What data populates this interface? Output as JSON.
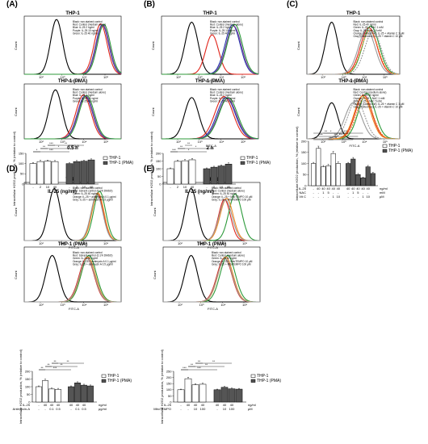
{
  "chart_data": [
    {
      "panel": "(A)",
      "type": "line",
      "title": "THP-1",
      "xlabel": "FITC-A",
      "ylabel": "Count",
      "legend": [
        "Black: non-stained control",
        "Red: Control (medium alone)",
        "Blue: IL-25 2 ng/ml",
        "Purple: IL-25 10 ng/ml",
        "Green: IL-25 40 ng/ml"
      ],
      "series": [
        {
          "color": "#000000",
          "peak": 4.5,
          "width": 0.55,
          "height": 1.0
        },
        {
          "color": "#e0251b",
          "peak": 8.6,
          "width": 0.6,
          "height": 0.92
        },
        {
          "color": "#2a3fae",
          "peak": 8.75,
          "width": 0.6,
          "height": 0.9
        },
        {
          "color": "#7a3a9a",
          "peak": 8.8,
          "width": 0.6,
          "height": 0.9
        },
        {
          "color": "#2c9a3a",
          "peak": 8.9,
          "width": 0.6,
          "height": 0.91
        }
      ]
    },
    {
      "panel": "(A)",
      "type": "line",
      "title": "THP-1 (PMA)",
      "xlabel": "FITC-A",
      "ylabel": "Count",
      "legend": [
        "Black: non-stained control",
        "Red: Control (medium alone)",
        "Blue: IL-25 2 ng/ml",
        "Purple: IL-25 10 ng/ml",
        "Green: IL-25 40 ng/ml"
      ],
      "series": [
        {
          "color": "#000000",
          "peak": 4.4,
          "width": 0.6,
          "height": 0.95
        },
        {
          "color": "#e0251b",
          "peak": 7.0,
          "width": 0.7,
          "height": 0.85
        },
        {
          "color": "#2a3fae",
          "peak": 7.15,
          "width": 0.7,
          "height": 0.83
        },
        {
          "color": "#7a3a9a",
          "peak": 7.2,
          "width": 0.7,
          "height": 0.83
        },
        {
          "color": "#2c9a3a",
          "peak": 7.3,
          "width": 0.7,
          "height": 0.84
        }
      ]
    },
    {
      "panel": "(B)",
      "type": "line",
      "title": "THP-1",
      "xlabel": "FITC-A",
      "ylabel": "Count",
      "legend": [
        "Black: non-stained control",
        "Red: Control (medium alone)",
        "Blue: IL-25 2 ng/ml",
        "Purple: IL-25 10 ng/ml",
        "Green: IL-25 40 ng/ml"
      ],
      "series": [
        {
          "color": "#000000",
          "peak": 4.3,
          "width": 0.6,
          "height": 0.95
        },
        {
          "color": "#e0251b",
          "peak": 6.2,
          "width": 0.6,
          "height": 0.72
        },
        {
          "color": "#2a3fae",
          "peak": 8.1,
          "width": 0.7,
          "height": 0.9
        },
        {
          "color": "#7a3a9a",
          "peak": 8.2,
          "width": 0.7,
          "height": 0.88
        },
        {
          "color": "#2c9a3a",
          "peak": 8.3,
          "width": 0.7,
          "height": 0.91
        }
      ]
    },
    {
      "panel": "(B)",
      "type": "line",
      "title": "THP-1 (PMA)",
      "xlabel": "FITC-A",
      "ylabel": "Count",
      "legend": [
        "Black: non-stained control",
        "Red: Control (medium alone)",
        "Blue: IL-25 2 ng/ml",
        "Purple: IL-25 10 ng/ml",
        "Green: IL-25 40 ng/ml"
      ],
      "series": [
        {
          "color": "#000000",
          "peak": 4.3,
          "width": 0.65,
          "height": 0.8
        },
        {
          "color": "#e0251b",
          "peak": 7.3,
          "width": 0.85,
          "height": 0.82
        },
        {
          "color": "#2a3fae",
          "peak": 7.5,
          "width": 0.85,
          "height": 0.8
        },
        {
          "color": "#7a3a9a",
          "peak": 7.6,
          "width": 0.85,
          "height": 0.78
        },
        {
          "color": "#2c9a3a",
          "peak": 7.7,
          "width": 0.85,
          "height": 0.8
        }
      ]
    },
    {
      "panel": "(C)",
      "type": "line",
      "title": "THP-1",
      "xlabel": "FITC-A",
      "ylabel": "Count",
      "legend": [
        "Black: non-stained control",
        "Red: IL-25 40 ng/ml",
        "Green: IL-25 + NAC 1 mM",
        "Gray: IL-25 + NAC 5 mM",
        "Orange (Dotted line): IL-25 + vitamin C 1 μM",
        "Gray (Dotted line): IL-25 + vitamin C 10 μM"
      ],
      "series": [
        {
          "color": "#000000",
          "peak": 3.9,
          "width": 0.6,
          "height": 0.95
        },
        {
          "color": "#e0251b",
          "peak": 7.5,
          "width": 0.8,
          "height": 0.85
        },
        {
          "color": "#2c9a3a",
          "peak": 7.7,
          "width": 0.8,
          "height": 0.88
        },
        {
          "color": "#9a9a9a",
          "peak": 7.3,
          "width": 0.8,
          "height": 0.82
        },
        {
          "color": "#f08a24",
          "peak": 7.6,
          "width": 0.8,
          "height": 0.8,
          "dashed": true
        },
        {
          "color": "#9a9a9a",
          "peak": 7.9,
          "width": 0.8,
          "height": 0.78,
          "dashed": true
        }
      ]
    },
    {
      "panel": "(C)",
      "type": "line",
      "title": "THP-1 (PMA)",
      "xlabel": "FITC-A",
      "ylabel": "Count",
      "legend": [
        "Black: non-stained control",
        "Red: Control (medium alone)",
        "Green: IL-25 40 ng/ml",
        "Orange: IL-25 + NAC 1 mM",
        "Gray: IL-25 + NAC 5 mM",
        "Orange (Dotted line): IL-25 + vitamin C 1 μM",
        "Gray (Dotted line): IL-25 + vitamin C 10 μM"
      ],
      "series": [
        {
          "color": "#000000",
          "peak": 3.9,
          "width": 0.6,
          "height": 0.7
        },
        {
          "color": "#e0251b",
          "peak": 7.0,
          "width": 0.8,
          "height": 0.85
        },
        {
          "color": "#2c9a3a",
          "peak": 7.3,
          "width": 0.8,
          "height": 0.88
        },
        {
          "color": "#f08a24",
          "peak": 6.9,
          "width": 0.8,
          "height": 0.83
        },
        {
          "color": "#9a9a9a",
          "peak": 6.0,
          "width": 0.8,
          "height": 0.7
        },
        {
          "color": "#f08a24",
          "peak": 7.1,
          "width": 0.8,
          "height": 0.8,
          "dashed": true
        },
        {
          "color": "#9a9a9a",
          "peak": 6.3,
          "width": 0.8,
          "height": 0.75,
          "dashed": true
        }
      ]
    },
    {
      "panel": "(D)",
      "type": "line",
      "title": "THP-1",
      "xlabel": "FITC-A",
      "ylabel": "Count",
      "legend": [
        "Black: non-stained control",
        "Red: Solvent control (0.1% DMSO)",
        "Green: IL-25 40 ng/ml",
        "Orange: IL-25 + antimycin A 0.1 μg/ml",
        "Gray: IL-25 + antimycin A 0.5 μg/ml"
      ],
      "series": [
        {
          "color": "#000000",
          "peak": 4.3,
          "width": 0.55,
          "height": 0.95
        },
        {
          "color": "#e0251b",
          "peak": 8.3,
          "width": 0.55,
          "height": 0.85
        },
        {
          "color": "#2c9a3a",
          "peak": 8.5,
          "width": 0.55,
          "height": 0.9
        },
        {
          "color": "#f08a24",
          "peak": 8.35,
          "width": 0.55,
          "height": 0.87
        },
        {
          "color": "#9a9a9a",
          "peak": 8.25,
          "width": 0.55,
          "height": 0.84
        }
      ]
    },
    {
      "panel": "(D)",
      "type": "line",
      "title": "THP-1 (PMA)",
      "xlabel": "FITC-A",
      "ylabel": "Count",
      "legend": [
        "Black: non-stained control",
        "Red: Solvent control (0.1% DMSO)",
        "Green: IL-25 40 ng/ml",
        "Orange: IL-25 + antimycin A 0.1 μg/ml",
        "Gray: IL-25 + antimycin A 0.5 μg/ml"
      ],
      "series": [
        {
          "color": "#000000",
          "peak": 4.1,
          "width": 0.6,
          "height": 0.9
        },
        {
          "color": "#e0251b",
          "peak": 7.3,
          "width": 0.7,
          "height": 0.85
        },
        {
          "color": "#2c9a3a",
          "peak": 7.5,
          "width": 0.7,
          "height": 0.9
        },
        {
          "color": "#f08a24",
          "peak": 7.4,
          "width": 0.7,
          "height": 0.87
        },
        {
          "color": "#9a9a9a",
          "peak": 7.35,
          "width": 0.7,
          "height": 0.84
        }
      ]
    },
    {
      "panel": "(E)",
      "type": "line",
      "title": "THP-1",
      "xlabel": "FITC-A",
      "ylabel": "Count",
      "legend": [
        "Black: non-stained control",
        "Red: Control (medium alone)",
        "Green: IL-25 40 ng/ml",
        "Orange: IL-25 + MitoTEMPO 10 μM",
        "Gray: IL-25 + MitoTEMPO 100 μM"
      ],
      "series": [
        {
          "color": "#000000",
          "peak": 4.1,
          "width": 0.55,
          "height": 0.95
        },
        {
          "color": "#e0251b",
          "peak": 7.2,
          "width": 0.55,
          "height": 0.75
        },
        {
          "color": "#2c9a3a",
          "peak": 8.2,
          "width": 0.6,
          "height": 0.85
        },
        {
          "color": "#f08a24",
          "peak": 7.4,
          "width": 0.6,
          "height": 0.77
        },
        {
          "color": "#9a9a9a",
          "peak": 7.3,
          "width": 0.6,
          "height": 0.74
        }
      ]
    },
    {
      "panel": "(E)",
      "type": "line",
      "title": "THP-1 (PMA)",
      "xlabel": "FITC-A",
      "ylabel": "Count",
      "legend": [
        "Black: non-stained control",
        "Red: Control (medium alone)",
        "Green: IL-25 40 ng/ml",
        "Orange: IL-25 + MitoTEMPO 10 μM",
        "Gray: IL-25 + MitoTEMPO 100 μM"
      ],
      "series": [
        {
          "color": "#000000",
          "peak": 4.1,
          "width": 0.6,
          "height": 0.9
        },
        {
          "color": "#e0251b",
          "peak": 7.2,
          "width": 0.7,
          "height": 0.85
        },
        {
          "color": "#2c9a3a",
          "peak": 7.5,
          "width": 0.7,
          "height": 0.9
        },
        {
          "color": "#f08a24",
          "peak": 7.3,
          "width": 0.7,
          "height": 0.87
        },
        {
          "color": "#9a9a9a",
          "peak": 7.25,
          "width": 0.7,
          "height": 0.84
        }
      ]
    },
    {
      "panel": "(A)",
      "type": "bar",
      "caption": "0.5 h",
      "ylabel": "Intracellular H2O2 production, % (relative to control)",
      "ylim": [
        0,
        150
      ],
      "yticks": [
        0,
        50,
        100,
        150
      ],
      "xlabel": "IL-25 (ng/ml)",
      "legend": [
        "THP-1",
        "THP-1 (PMA)"
      ],
      "groups": [
        {
          "name": "THP-1",
          "fill": "#ffffff",
          "categories": [
            "-",
            "2",
            "10",
            "40"
          ],
          "values": [
            100,
            110,
            112,
            110
          ],
          "errors": [
            5,
            6,
            5,
            5
          ]
        },
        {
          "name": "THP-1 (PMA)",
          "fill": "#555555",
          "categories": [
            "-",
            "2",
            "10",
            "40"
          ],
          "values": [
            100,
            110,
            112,
            118
          ],
          "errors": [
            4,
            5,
            5,
            5
          ]
        }
      ],
      "sig": [
        "*",
        "**",
        "***",
        "***",
        "*",
        "**"
      ]
    },
    {
      "panel": "(B)",
      "type": "bar",
      "caption": "2 h",
      "ylabel": "Intracellular H2O2 production, % (relative to control)",
      "ylim": [
        0,
        200
      ],
      "yticks": [
        0,
        50,
        100,
        150,
        200
      ],
      "xlabel": "IL-25 (ng/ml)",
      "legend": [
        "THP-1",
        "THP-1 (PMA)"
      ],
      "groups": [
        {
          "name": "THP-1",
          "fill": "#ffffff",
          "categories": [
            "-",
            "2",
            "10",
            "40"
          ],
          "values": [
            100,
            148,
            152,
            158
          ],
          "errors": [
            5,
            8,
            8,
            9
          ]
        },
        {
          "name": "THP-1 (PMA)",
          "fill": "#555555",
          "categories": [
            "-",
            "2",
            "10",
            "40"
          ],
          "values": [
            100,
            110,
            118,
            130
          ],
          "errors": [
            5,
            6,
            7,
            8
          ]
        }
      ],
      "sig": [
        "***",
        "**",
        "**",
        "*",
        "*"
      ]
    },
    {
      "panel": "(C)",
      "type": "bar",
      "ylabel": "Intracellular H2O2 production, % (relative to control)",
      "ylim": [
        0,
        200
      ],
      "yticks": [
        0,
        50,
        100,
        150,
        200
      ],
      "rows": [
        {
          "label": "IL-25",
          "values": [
            "-",
            "40",
            "40",
            "40",
            "40",
            "40",
            "-",
            "40",
            "40",
            "40",
            "40",
            "40"
          ],
          "unit": "ng/ml"
        },
        {
          "label": "NAC",
          "values": [
            "-",
            "-",
            "1",
            "5",
            "-",
            "-",
            "-",
            "-",
            "1",
            "5",
            "-",
            "-"
          ],
          "unit": "mM"
        },
        {
          "label": "Vit C",
          "values": [
            "-",
            "-",
            "-",
            "-",
            "1",
            "10",
            "-",
            "-",
            "-",
            "-",
            "1",
            "10"
          ],
          "unit": "μM"
        }
      ],
      "legend": [
        "THP-1",
        "THP-1 (PMA)"
      ],
      "groups": [
        {
          "name": "THP-1",
          "fill": "#ffffff",
          "values": [
            100,
            168,
            85,
            90,
            145,
            100
          ],
          "errors": [
            5,
            10,
            6,
            6,
            9,
            7
          ]
        },
        {
          "name": "THP-1 (PMA)",
          "fill": "#555555",
          "values": [
            100,
            120,
            50,
            35,
            85,
            55
          ],
          "errors": [
            5,
            7,
            5,
            4,
            6,
            5
          ]
        }
      ],
      "sig": [
        "**",
        "***",
        "**",
        "***",
        "***",
        "*",
        "**",
        "***",
        "***"
      ]
    },
    {
      "panel": "(D)",
      "type": "bar",
      "ylabel": "Intracellular H2O2 production, % (relative to control)",
      "ylim": [
        0,
        200
      ],
      "yticks": [
        0,
        50,
        100,
        150,
        200
      ],
      "rows": [
        {
          "label": "IL-25",
          "values": [
            "-",
            "40",
            "40",
            "40",
            "-",
            "40",
            "40",
            "40"
          ],
          "unit": "ng/ml"
        },
        {
          "label": "Antimycin-A",
          "values": [
            "-",
            "-",
            "0.1",
            "0.5",
            "-",
            "-",
            "0.1",
            "0.5"
          ],
          "unit": "μg/ml"
        }
      ],
      "legend": [
        "THP-1",
        "THP-1 (PMA)"
      ],
      "groups": [
        {
          "name": "THP-1",
          "fill": "#ffffff",
          "values": [
            100,
            140,
            85,
            83
          ],
          "errors": [
            5,
            9,
            6,
            6
          ]
        },
        {
          "name": "THP-1 (PMA)",
          "fill": "#555555",
          "values": [
            100,
            125,
            110,
            105
          ],
          "errors": [
            5,
            7,
            6,
            6
          ]
        }
      ],
      "sig": [
        "**",
        "**",
        "**",
        "***",
        "**",
        "**"
      ]
    },
    {
      "panel": "(E)",
      "type": "bar",
      "ylabel": "Intracellular H2O2 production, % (relative to control)",
      "ylim": [
        0,
        250
      ],
      "yticks": [
        0,
        50,
        100,
        150,
        200,
        250
      ],
      "rows": [
        {
          "label": "IL-25",
          "values": [
            "-",
            "40",
            "40",
            "40",
            "-",
            "40",
            "40",
            "40"
          ],
          "unit": "ng/ml"
        },
        {
          "label": "MitoTEMPO",
          "values": [
            "-",
            "-",
            "10",
            "100",
            "-",
            "-",
            "10",
            "100"
          ],
          "unit": "μM"
        }
      ],
      "legend": [
        "THP-1",
        "THP-1 (PMA)"
      ],
      "groups": [
        {
          "name": "THP-1",
          "fill": "#ffffff",
          "values": [
            100,
            190,
            140,
            145
          ],
          "errors": [
            5,
            12,
            9,
            9
          ]
        },
        {
          "name": "THP-1 (PMA)",
          "fill": "#555555",
          "values": [
            100,
            120,
            108,
            105
          ],
          "errors": [
            5,
            7,
            6,
            6
          ]
        }
      ],
      "sig": [
        "***",
        "**",
        "**",
        "***",
        "**",
        "**"
      ]
    }
  ],
  "panel_labels": [
    "(A)",
    "(B)",
    "(C)",
    "(D)",
    "(E)"
  ],
  "time_labels": [
    "0.5 h",
    "2 h"
  ],
  "axis_ticks": {
    "log_ticks": [
      "10²",
      "10³",
      "10⁴",
      "10⁵"
    ]
  }
}
